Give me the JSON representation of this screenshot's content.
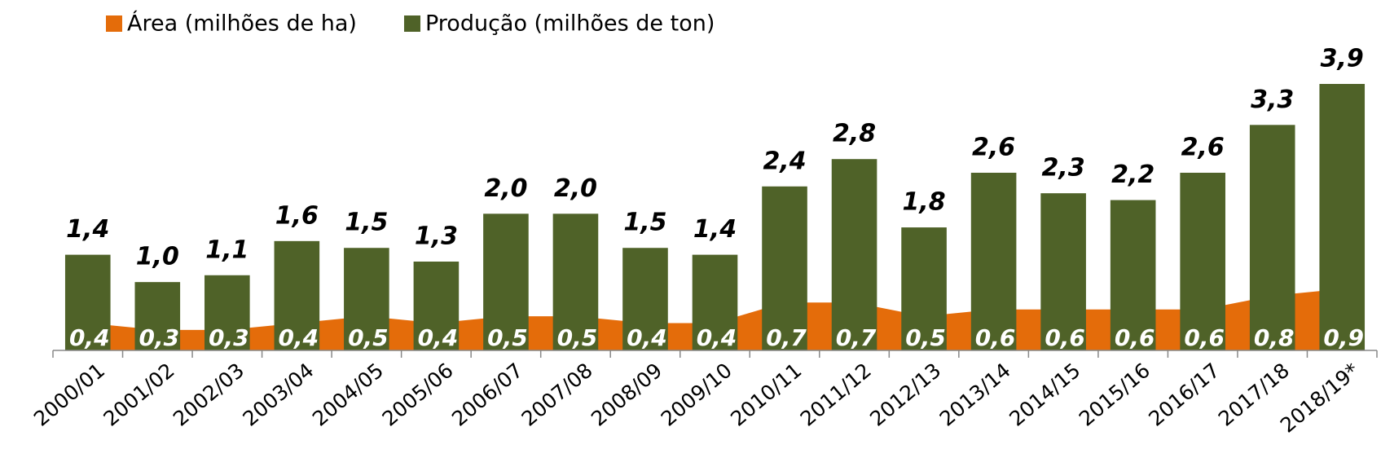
{
  "chart_data": {
    "type": "bar",
    "categories": [
      "2000/01",
      "2001/02",
      "2002/03",
      "2003/04",
      "2004/05",
      "2005/06",
      "2006/07",
      "2007/08",
      "2008/09",
      "2009/10",
      "2010/11",
      "2011/12",
      "2012/13",
      "2013/14",
      "2014/15",
      "2015/16",
      "2016/17",
      "2017/18",
      "2018/19*"
    ],
    "series": [
      {
        "name": "Área (milhões de ha)",
        "color": "#e46c0a",
        "type": "area",
        "values": [
          0.4,
          0.3,
          0.3,
          0.4,
          0.5,
          0.4,
          0.5,
          0.5,
          0.4,
          0.4,
          0.7,
          0.7,
          0.5,
          0.6,
          0.6,
          0.6,
          0.6,
          0.8,
          0.9
        ],
        "value_labels": [
          "0,4",
          "0,3",
          "0,3",
          "0,4",
          "0,5",
          "0,4",
          "0,5",
          "0,5",
          "0,4",
          "0,4",
          "0,7",
          "0,7",
          "0,5",
          "0,6",
          "0,6",
          "0,6",
          "0,6",
          "0,8",
          "0,9"
        ]
      },
      {
        "name": "Produção (milhões de ton)",
        "color": "#4f6228",
        "type": "bar",
        "values": [
          1.4,
          1.0,
          1.1,
          1.6,
          1.5,
          1.3,
          2.0,
          2.0,
          1.5,
          1.4,
          2.4,
          2.8,
          1.8,
          2.6,
          2.3,
          2.2,
          2.6,
          3.3,
          3.9
        ],
        "value_labels": [
          "1,4",
          "1,0",
          "1,1",
          "1,6",
          "1,5",
          "1,3",
          "2,0",
          "2,0",
          "1,5",
          "1,4",
          "2,4",
          "2,8",
          "1,8",
          "2,6",
          "2,3",
          "2,2",
          "2,6",
          "3,3",
          "3,9"
        ]
      }
    ],
    "legend": "top-left"
  }
}
